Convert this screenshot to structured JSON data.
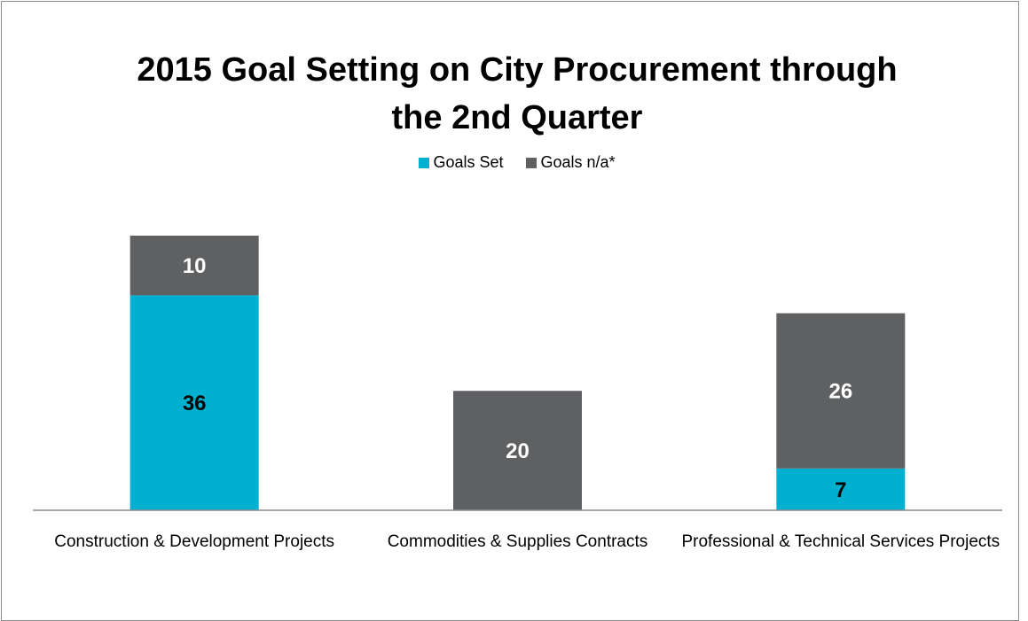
{
  "chart_data": {
    "type": "stacked_bar",
    "title": "2015 Goal Setting on City Procurement through the 2nd Quarter",
    "categories": [
      "Construction & Development Projects",
      "Commodities & Supplies Contracts",
      "Professional & Technical Services Projects"
    ],
    "series": [
      {
        "name": "Goals Set",
        "color": "#00b0d0",
        "label_color": "#000000",
        "values": [
          36,
          null,
          7
        ]
      },
      {
        "name": "Goals n/a*",
        "color": "#5f6062",
        "label_color": "#ffffff",
        "values": [
          10,
          20,
          26
        ]
      }
    ],
    "legend": "top"
  }
}
